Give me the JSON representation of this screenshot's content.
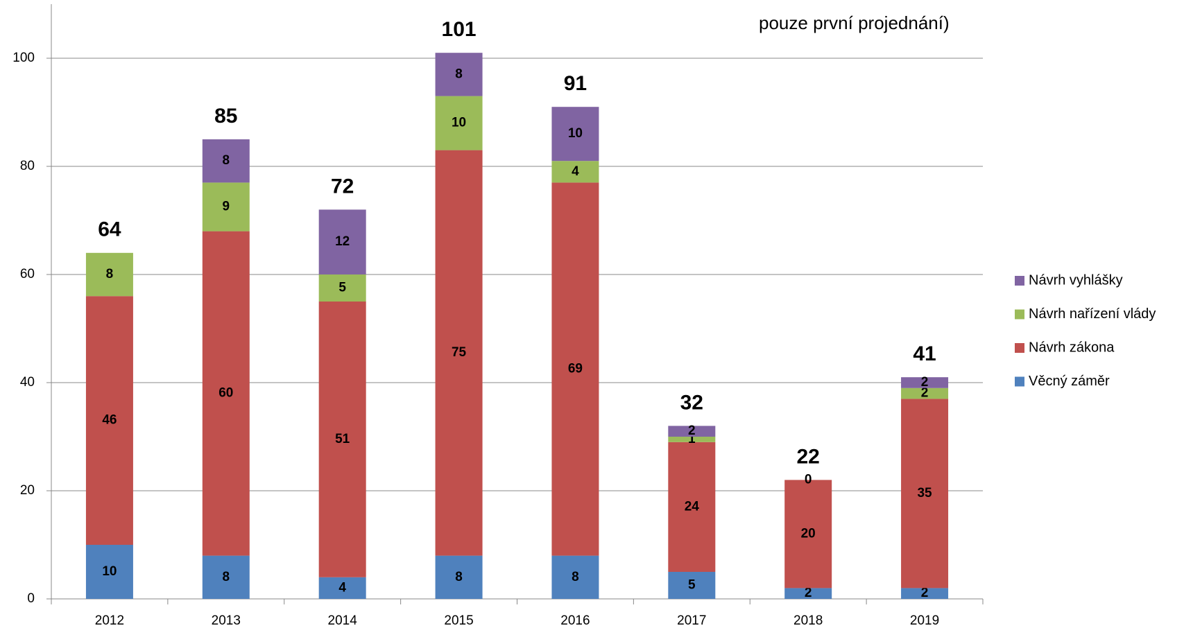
{
  "chart_data": {
    "type": "stacked_bar",
    "title": "pouze první projednání)",
    "categories": [
      "2012",
      "2013",
      "2014",
      "2015",
      "2016",
      "2017",
      "2018",
      "2019"
    ],
    "series": [
      {
        "name": "Věcný záměr",
        "color": "#4f81bd",
        "values": [
          10,
          8,
          4,
          8,
          8,
          5,
          2,
          2
        ]
      },
      {
        "name": "Návrh zákona",
        "color": "#c0504d",
        "values": [
          46,
          60,
          51,
          75,
          69,
          24,
          20,
          35
        ]
      },
      {
        "name": "Návrh nařízení vlády",
        "color": "#9bbb59",
        "values": [
          8,
          9,
          5,
          10,
          4,
          1,
          0,
          2
        ]
      },
      {
        "name": "Návrh vyhlášky",
        "color": "#8064a2",
        "values": [
          null,
          8,
          12,
          8,
          10,
          2,
          null,
          2
        ]
      }
    ],
    "totals": [
      64,
      85,
      72,
      101,
      91,
      32,
      22,
      41
    ],
    "ylim": [
      0,
      110
    ],
    "yticks": [
      0,
      20,
      40,
      60,
      80,
      100
    ],
    "grid": true,
    "legend": "right"
  }
}
